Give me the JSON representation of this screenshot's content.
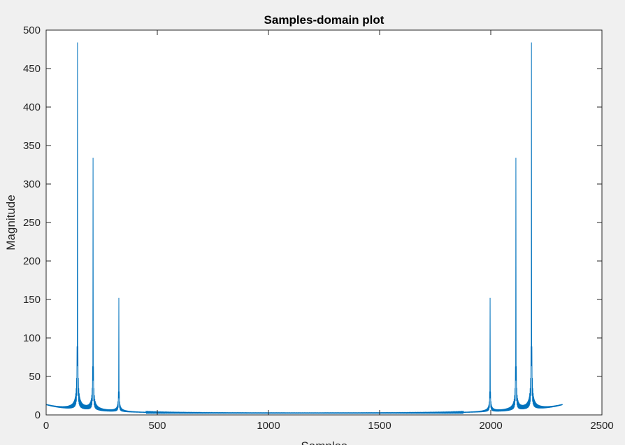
{
  "chart_data": {
    "type": "line",
    "title": "Samples-domain plot",
    "xlabel": "Samples",
    "ylabel": "Magnitude",
    "xlim": [
      0,
      2500
    ],
    "ylim": [
      0,
      500
    ],
    "xticks": [
      0,
      500,
      1000,
      1500,
      2000,
      2500
    ],
    "yticks": [
      0,
      50,
      100,
      150,
      200,
      250,
      300,
      350,
      400,
      450,
      500
    ],
    "grid": false,
    "line_color": "#0072bd",
    "peaks": [
      {
        "x": 140,
        "y": 484
      },
      {
        "x": 210,
        "y": 334
      },
      {
        "x": 326,
        "y": 152
      },
      {
        "x": 1996,
        "y": 152
      },
      {
        "x": 2112,
        "y": 334
      },
      {
        "x": 2182,
        "y": 484
      }
    ],
    "sample_count": 2322,
    "baseline_level": 2
  },
  "colors": {
    "figure_background": "#f0f0f0",
    "axes_background": "#ffffff",
    "axis_color": "#262626",
    "line_color": "#0072bd"
  }
}
